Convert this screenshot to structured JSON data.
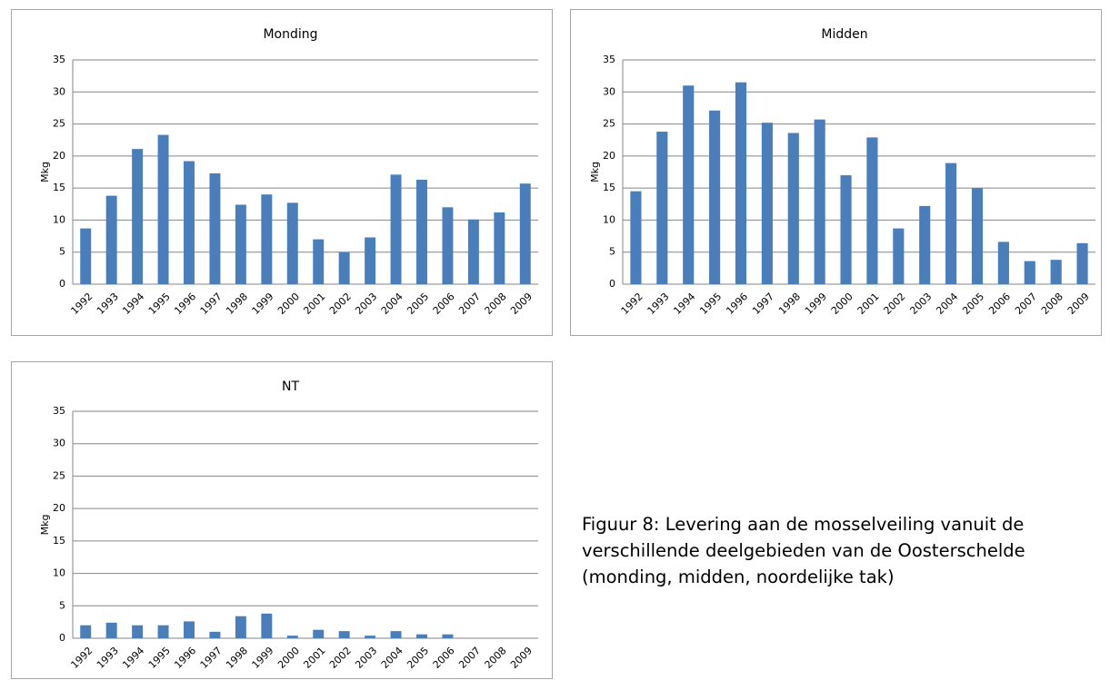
{
  "chart_data": [
    {
      "type": "bar",
      "title": "Monding",
      "y_label": "Mkg",
      "color": "#4a7ebb",
      "grid": true,
      "categories": [
        "1992",
        "1993",
        "1994",
        "1995",
        "1996",
        "1997",
        "1998",
        "1999",
        "2000",
        "2001",
        "2002",
        "2003",
        "2004",
        "2005",
        "2006",
        "2007",
        "2008",
        "2009"
      ],
      "values": [
        8.7,
        13.8,
        21.1,
        23.3,
        19.2,
        17.3,
        12.4,
        14.0,
        12.7,
        7.0,
        5.0,
        7.3,
        17.1,
        16.3,
        12.0,
        10.1,
        11.2,
        15.7
      ],
      "ylim": [
        0,
        35
      ],
      "yticks": [
        0,
        5,
        10,
        15,
        20,
        25,
        30,
        35
      ]
    },
    {
      "type": "bar",
      "title": "Midden",
      "y_label": "Mkg",
      "color": "#4a7ebb",
      "grid": true,
      "categories": [
        "1992",
        "1993",
        "1994",
        "1995",
        "1996",
        "1997",
        "1998",
        "1999",
        "2000",
        "2001",
        "2002",
        "2003",
        "2004",
        "2005",
        "2006",
        "2007",
        "2008",
        "2009"
      ],
      "values": [
        14.5,
        23.8,
        31.0,
        27.1,
        31.5,
        25.2,
        23.6,
        25.7,
        17.0,
        22.9,
        8.7,
        12.2,
        18.9,
        15.0,
        6.6,
        3.6,
        3.8,
        6.4
      ],
      "ylim": [
        0,
        35
      ],
      "yticks": [
        0,
        5,
        10,
        15,
        20,
        25,
        30,
        35
      ]
    },
    {
      "type": "bar",
      "title": "NT",
      "y_label": "Mkg",
      "color": "#4a7ebb",
      "grid": true,
      "categories": [
        "1992",
        "1993",
        "1994",
        "1995",
        "1996",
        "1997",
        "1998",
        "1999",
        "2000",
        "2001",
        "2002",
        "2003",
        "2004",
        "2005",
        "2006",
        "2007",
        "2008",
        "2009"
      ],
      "values": [
        2.0,
        2.4,
        2.0,
        2.0,
        2.6,
        1.0,
        3.4,
        3.8,
        0.4,
        1.3,
        1.1,
        0.4,
        1.1,
        0.6,
        0.6,
        0,
        0,
        0
      ],
      "ylim": [
        0,
        35
      ],
      "yticks": [
        0,
        5,
        10,
        15,
        20,
        25,
        30,
        35
      ]
    }
  ],
  "caption": "Figuur 8: Levering aan de mosselveiling vanuit de verschillende deelgebieden van de Oosterschelde (monding, midden, noordelijke tak)"
}
